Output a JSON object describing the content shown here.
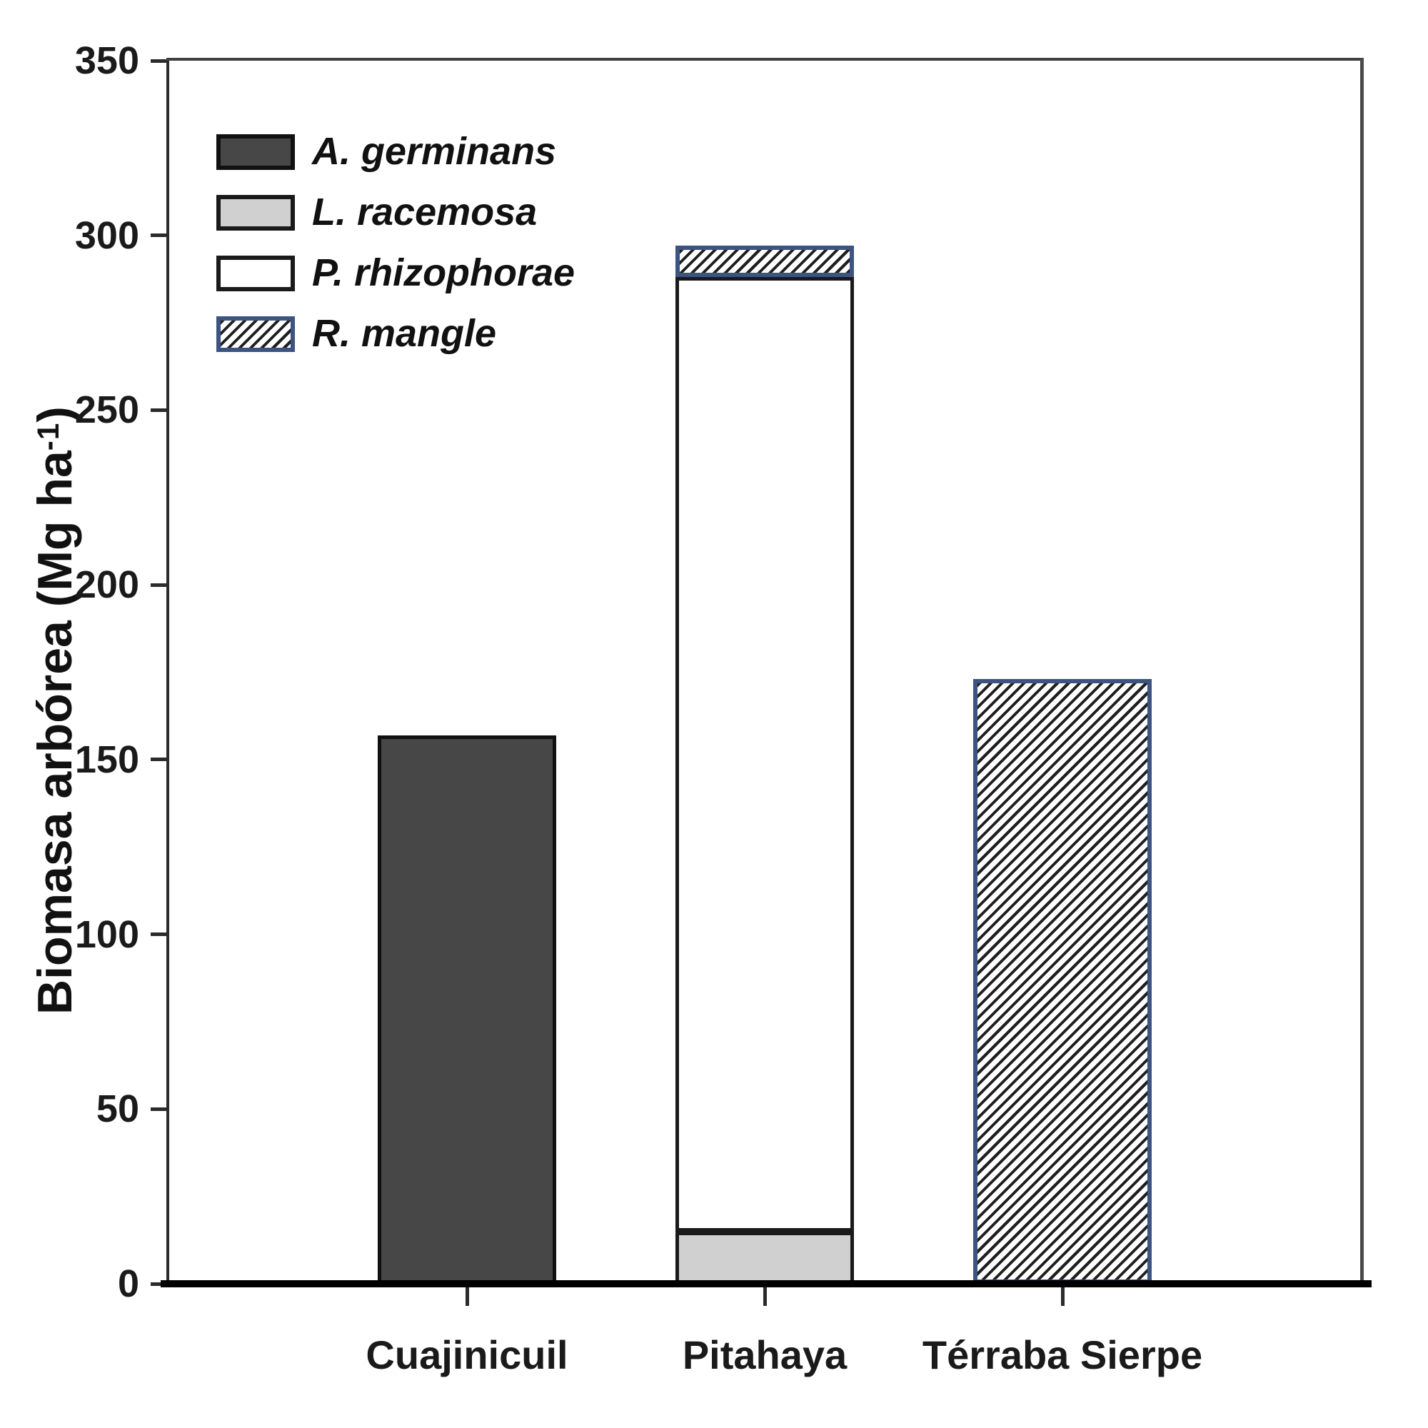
{
  "chart_data": {
    "type": "bar",
    "stacked": true,
    "title": "",
    "xlabel": "",
    "ylabel": "Biomasa arbórea (Mg ha⁻¹)",
    "ylabel_parts": {
      "main": "Biomasa arbórea (Mg ha",
      "superscript": "-1",
      "suffix": ")"
    },
    "ylim": [
      0,
      350
    ],
    "yticks": [
      0,
      50,
      100,
      150,
      200,
      250,
      300,
      350
    ],
    "grid": false,
    "legend_position": "upper-left",
    "categories": [
      "Cuajinicuil",
      "Pitahaya",
      "Térraba Sierpe"
    ],
    "series": [
      {
        "name": "A. germinans",
        "values": [
          157,
          0,
          0
        ],
        "pattern": "solid",
        "fill": "#474747",
        "border": "#111111"
      },
      {
        "name": "L. racemosa",
        "values": [
          0,
          15,
          0
        ],
        "pattern": "solid",
        "fill": "#d0d0d0",
        "border": "#1a1a1a"
      },
      {
        "name": "P. rhizophorae",
        "values": [
          0,
          273,
          0
        ],
        "pattern": "solid",
        "fill": "#ffffff",
        "border": "#1a1a1a"
      },
      {
        "name": "R. mangle",
        "values": [
          0,
          9,
          173
        ],
        "pattern": "diagonal-hatch",
        "fill": "#ffffff",
        "border": "#3d5380",
        "hatch_color": "#1f1f1f"
      }
    ]
  },
  "colors": {
    "axis_line": "#2b2b2b",
    "frame_line": "#4a4a4a",
    "baseline": "#000000",
    "text": "#1a1a1a",
    "hatch_border_blue": "#3d5380"
  }
}
